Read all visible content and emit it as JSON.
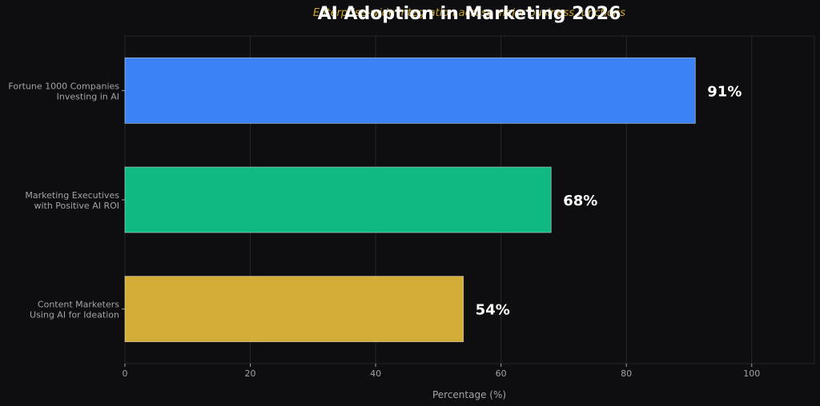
{
  "colors": {
    "background": "#0e0e11",
    "grid": "#26262b",
    "axis_text": "#a3a3a8",
    "title": "#ffffff",
    "subtitle": "#c9a227",
    "value_label": "#ffffff"
  },
  "chart_data": {
    "type": "bar",
    "orientation": "horizontal",
    "title": "AI Adoption in Marketing 2026",
    "subtitle": "Enterprise-wide integration across major business functions",
    "xlabel": "Percentage (%)",
    "ylabel": "",
    "xlim": [
      0,
      110
    ],
    "xticks": [
      0,
      20,
      40,
      60,
      80,
      100
    ],
    "grid": true,
    "legend": "none",
    "categories": [
      [
        "Fortune 1000 Companies",
        "Investing in AI"
      ],
      [
        "Marketing Executives",
        "with Positive AI ROI"
      ],
      [
        "Content Marketers",
        "Using AI for Ideation"
      ]
    ],
    "values": [
      91,
      68,
      54
    ],
    "value_labels": [
      "91%",
      "68%",
      "54%"
    ],
    "bar_colors": [
      "#3b82f6",
      "#10b981",
      "#d4ad38"
    ]
  }
}
